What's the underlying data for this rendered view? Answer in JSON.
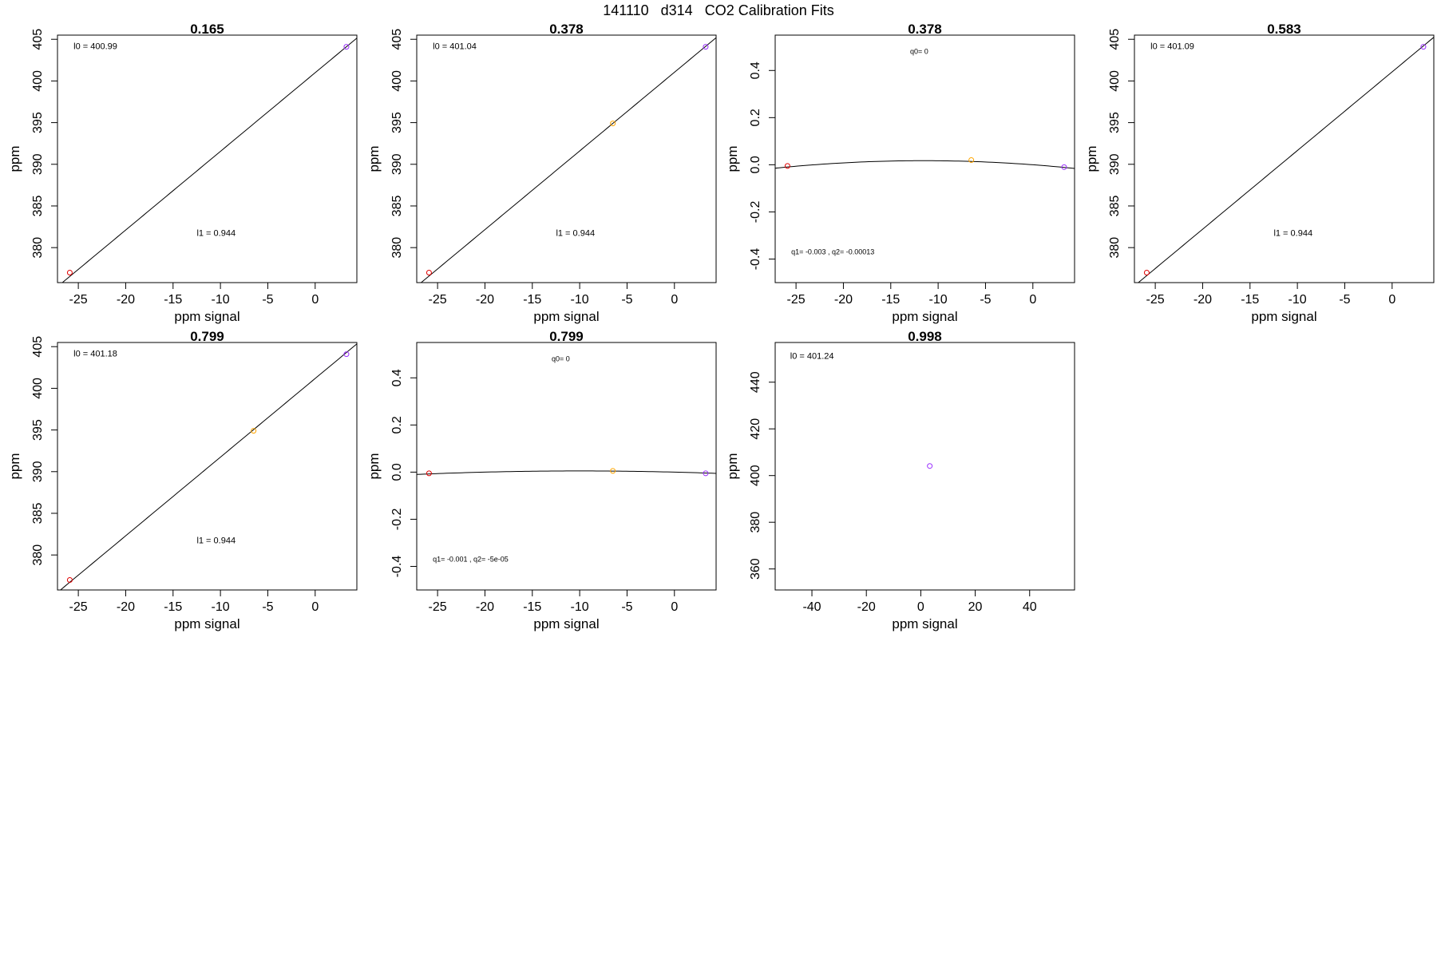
{
  "figure": {
    "title": "141110   d314   CO2 Calibration Fits"
  },
  "chart_data": [
    {
      "type": "scatter",
      "title": "0.165",
      "xlabel": "ppm signal",
      "ylabel": "ppm",
      "xlim": [
        -27.2,
        4.4
      ],
      "ylim": [
        375.8,
        405.5
      ],
      "xticks": [
        -25,
        -20,
        -15,
        -10,
        -5,
        0
      ],
      "yticks": [
        380,
        385,
        390,
        395,
        400,
        405
      ],
      "series": [
        {
          "values": [
            {
              "x": -25.9,
              "y": 377.0,
              "color": "#e00000"
            },
            {
              "x": 3.3,
              "y": 404.1,
              "color": "#9b30ff"
            }
          ]
        }
      ],
      "fit": {
        "kind": "linear",
        "intercept": 400.99,
        "slope": 0.944
      },
      "annotations": [
        {
          "text": "l0 =  400.99",
          "x": -25.5,
          "y": 403.8
        },
        {
          "text": "l1 =  0.944",
          "x": -12.5,
          "y": 381.4
        }
      ]
    },
    {
      "type": "scatter",
      "title": "0.378",
      "xlabel": "ppm signal",
      "ylabel": "ppm",
      "xlim": [
        -27.2,
        4.4
      ],
      "ylim": [
        375.8,
        405.5
      ],
      "xticks": [
        -25,
        -20,
        -15,
        -10,
        -5,
        0
      ],
      "yticks": [
        380,
        385,
        390,
        395,
        400,
        405
      ],
      "series": [
        {
          "values": [
            {
              "x": -25.9,
              "y": 377.0,
              "color": "#e00000"
            },
            {
              "x": -6.5,
              "y": 394.9,
              "color": "#ffa500"
            },
            {
              "x": 3.3,
              "y": 404.1,
              "color": "#9b30ff"
            }
          ]
        }
      ],
      "fit": {
        "kind": "linear",
        "intercept": 401.04,
        "slope": 0.944
      },
      "annotations": [
        {
          "text": "l0 =  401.04",
          "x": -25.5,
          "y": 403.8
        },
        {
          "text": "l1 =  0.944",
          "x": -12.5,
          "y": 381.4
        }
      ]
    },
    {
      "type": "scatter",
      "title": "0.378",
      "xlabel": "ppm signal",
      "ylabel": "ppm",
      "xlim": [
        -27.2,
        4.4
      ],
      "ylim": [
        -0.5,
        0.55
      ],
      "xticks": [
        -25,
        -20,
        -15,
        -10,
        -5,
        0
      ],
      "yticks": [
        -0.4,
        -0.2,
        0.0,
        0.2,
        0.4
      ],
      "series": [
        {
          "values": [
            {
              "x": -25.9,
              "y": -0.005,
              "color": "#e00000"
            },
            {
              "x": -6.5,
              "y": 0.02,
              "color": "#ffa500"
            },
            {
              "x": 3.3,
              "y": -0.01,
              "color": "#9b30ff"
            }
          ]
        }
      ],
      "fit": {
        "kind": "quadratic",
        "q0": 0,
        "q1": -0.003,
        "q2": -0.00013
      },
      "annotations": [
        {
          "text": "q0= 0",
          "x": -12.0,
          "y": 0.47
        },
        {
          "text": "q1= -0.003 , q2= -0.00013",
          "x": -25.5,
          "y": -0.38
        }
      ]
    },
    {
      "type": "scatter",
      "title": "0.583",
      "xlabel": "ppm signal",
      "ylabel": "ppm",
      "xlim": [
        -27.2,
        4.4
      ],
      "ylim": [
        375.8,
        405.5
      ],
      "xticks": [
        -25,
        -20,
        -15,
        -10,
        -5,
        0
      ],
      "yticks": [
        380,
        385,
        390,
        395,
        400,
        405
      ],
      "series": [
        {
          "values": [
            {
              "x": -25.9,
              "y": 377.0,
              "color": "#e00000"
            },
            {
              "x": 3.3,
              "y": 404.1,
              "color": "#9b30ff"
            }
          ]
        }
      ],
      "fit": {
        "kind": "linear",
        "intercept": 401.09,
        "slope": 0.944
      },
      "annotations": [
        {
          "text": "l0 =  401.09",
          "x": -25.5,
          "y": 403.8
        },
        {
          "text": "l1 =  0.944",
          "x": -12.5,
          "y": 381.4
        }
      ]
    },
    {
      "type": "scatter",
      "title": "0.799",
      "xlabel": "ppm signal",
      "ylabel": "ppm",
      "xlim": [
        -27.2,
        4.4
      ],
      "ylim": [
        375.8,
        405.5
      ],
      "xticks": [
        -25,
        -20,
        -15,
        -10,
        -5,
        0
      ],
      "yticks": [
        380,
        385,
        390,
        395,
        400,
        405
      ],
      "series": [
        {
          "values": [
            {
              "x": -25.9,
              "y": 377.0,
              "color": "#e00000"
            },
            {
              "x": -6.5,
              "y": 394.9,
              "color": "#ffa500"
            },
            {
              "x": 3.3,
              "y": 404.1,
              "color": "#9b30ff"
            }
          ]
        }
      ],
      "fit": {
        "kind": "linear",
        "intercept": 401.18,
        "slope": 0.944
      },
      "annotations": [
        {
          "text": "l0 =  401.18",
          "x": -25.5,
          "y": 403.8
        },
        {
          "text": "l1 =  0.944",
          "x": -12.5,
          "y": 381.4
        }
      ]
    },
    {
      "type": "scatter",
      "title": "0.799",
      "xlabel": "ppm signal",
      "ylabel": "ppm",
      "xlim": [
        -27.2,
        4.4
      ],
      "ylim": [
        -0.5,
        0.55
      ],
      "xticks": [
        -25,
        -20,
        -15,
        -10,
        -5,
        0
      ],
      "yticks": [
        -0.4,
        -0.2,
        0.0,
        0.2,
        0.4
      ],
      "series": [
        {
          "values": [
            {
              "x": -25.9,
              "y": -0.005,
              "color": "#e00000"
            },
            {
              "x": -6.5,
              "y": 0.005,
              "color": "#ffa500"
            },
            {
              "x": 3.3,
              "y": -0.005,
              "color": "#9b30ff"
            }
          ]
        }
      ],
      "fit": {
        "kind": "quadratic",
        "q0": 0,
        "q1": -0.001,
        "q2": -5e-05
      },
      "annotations": [
        {
          "text": "q0= 0",
          "x": -12.0,
          "y": 0.47
        },
        {
          "text": "q1= -0.001 , q2= -5e-05",
          "x": -25.5,
          "y": -0.38
        }
      ]
    },
    {
      "type": "scatter",
      "title": "0.998",
      "xlabel": "ppm signal",
      "ylabel": "ppm",
      "xlim": [
        -53.5,
        56.5
      ],
      "ylim": [
        351.0,
        457.0
      ],
      "xticks": [
        -40,
        -20,
        0,
        20,
        40
      ],
      "yticks": [
        360,
        380,
        400,
        420,
        440
      ],
      "series": [
        {
          "values": [
            {
              "x": 3.3,
              "y": 404.1,
              "color": "#9b30ff"
            }
          ]
        }
      ],
      "annotations": [
        {
          "text": "l0 =  401.24",
          "x": -48.0,
          "y": 450.0
        }
      ]
    }
  ]
}
